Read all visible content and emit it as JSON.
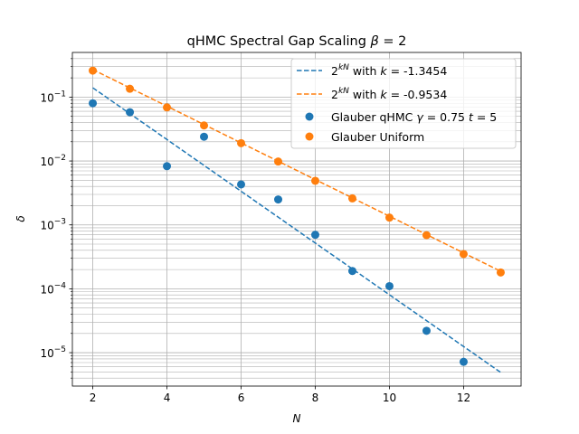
{
  "chart_data": {
    "type": "scatter",
    "title": "qHMC Spectral Gap Scaling β = 2",
    "xlabel": "N",
    "ylabel": "δ",
    "xlim": [
      1.45,
      13.55
    ],
    "ylim": [
      3e-06,
      0.5
    ],
    "yscale": "log",
    "grid": true,
    "grid_minor_y": true,
    "legend_position": "top-right",
    "x_ticks": [
      2,
      4,
      6,
      8,
      10,
      12
    ],
    "x_tick_labels": [
      "2",
      "4",
      "6",
      "8",
      "10",
      "12"
    ],
    "y_ticks": [
      1e-05,
      0.0001,
      0.001,
      0.01,
      0.1
    ],
    "y_tick_labels": [
      {
        "base": "10",
        "exp": "−5"
      },
      {
        "base": "10",
        "exp": "−4"
      },
      {
        "base": "10",
        "exp": "−3"
      },
      {
        "base": "10",
        "exp": "−2"
      },
      {
        "base": "10",
        "exp": "−1"
      }
    ],
    "fits": [
      {
        "name": "2^{kN} with k = -1.3454",
        "legend_label": {
          "base": "2",
          "exp": "kN",
          "mid": " with ",
          "var": "k",
          "eq": " = ",
          "value": " -1.3454"
        },
        "k": -1.3454,
        "anchor_x": 2,
        "anchor_y": 0.14,
        "x_range": [
          2,
          13
        ],
        "color": "#1f77b4",
        "style": "dashed"
      },
      {
        "name": "2^{kN} with k = -0.9534",
        "legend_label": {
          "base": "2",
          "exp": "kN",
          "mid": " with ",
          "var": "k",
          "eq": " = ",
          "value": " -0.9534"
        },
        "k": -0.9534,
        "anchor_x": 2,
        "anchor_y": 0.27,
        "x_range": [
          2,
          13
        ],
        "color": "#ff7f0e",
        "style": "dashed"
      }
    ],
    "series": [
      {
        "name": "Glauber qHMC γ = 0.75 t = 5",
        "legend_label": {
          "pre": "Glauber qHMC ",
          "g": "γ",
          "geq": " = 0.75 ",
          "t": "t",
          "teq": " = 5"
        },
        "color": "#1f77b4",
        "x": [
          2,
          3,
          4,
          5,
          6,
          7,
          8,
          9,
          10,
          11,
          12
        ],
        "y": [
          0.08,
          0.058,
          0.0083,
          0.024,
          0.0043,
          0.0025,
          0.0007,
          0.00019,
          0.00011,
          2.2e-05,
          7.2e-06
        ]
      },
      {
        "name": "Glauber Uniform",
        "legend_label": {
          "pre": "Glauber Uniform"
        },
        "color": "#ff7f0e",
        "x": [
          2,
          3,
          4,
          5,
          6,
          7,
          8,
          9,
          10,
          11,
          12,
          13
        ],
        "y": [
          0.26,
          0.135,
          0.069,
          0.036,
          0.019,
          0.0098,
          0.0049,
          0.0026,
          0.0013,
          0.00069,
          0.00035,
          0.00018
        ]
      }
    ]
  }
}
